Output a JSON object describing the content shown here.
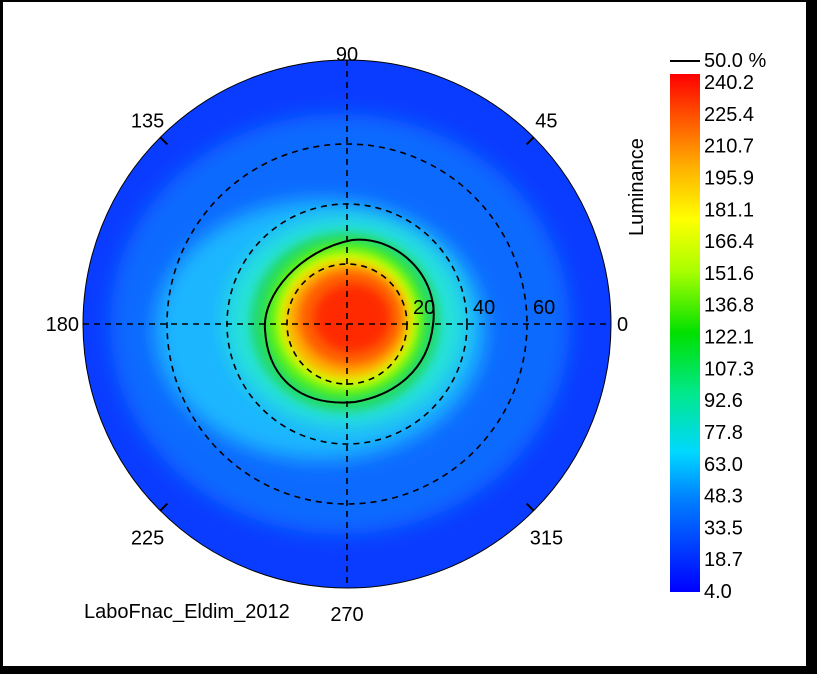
{
  "chart_data": {
    "type": "heatmap",
    "projection": "polar",
    "angle_labels": [
      {
        "label": "90",
        "deg": 90
      },
      {
        "label": "45",
        "deg": 45
      },
      {
        "label": "135",
        "deg": 135
      },
      {
        "label": "180",
        "deg": 180
      },
      {
        "label": "0",
        "deg": 0
      },
      {
        "label": "225",
        "deg": 225
      },
      {
        "label": "315",
        "deg": 315
      },
      {
        "label": "270",
        "deg": 270
      }
    ],
    "radial_rings": [
      20,
      40,
      60
    ],
    "radial_labels": [
      "20",
      "40",
      "60"
    ],
    "radial_max": 88,
    "colorbar": {
      "title": "Luminance",
      "ticks": [
        "240.2",
        "225.4",
        "210.7",
        "195.9",
        "181.1",
        "166.4",
        "151.6",
        "136.8",
        "122.1",
        "107.3",
        "92.6",
        "77.8",
        "63.0",
        "48.3",
        "33.5",
        "18.7",
        "4.0"
      ],
      "min": 4.0,
      "max": 240.2,
      "colors": [
        "#0000ff",
        "#00a0ff",
        "#00e6e6",
        "#00e000",
        "#ffff00",
        "#ff8000",
        "#ff0000"
      ],
      "contour_legend": "50.0 %"
    },
    "contour_level_percent": 50.0,
    "peak_luminance": 240.2,
    "peak_position": {
      "r": 5,
      "angle": 0
    },
    "grid": true,
    "footer_label": "LaboFnac_Eldim_2012"
  }
}
